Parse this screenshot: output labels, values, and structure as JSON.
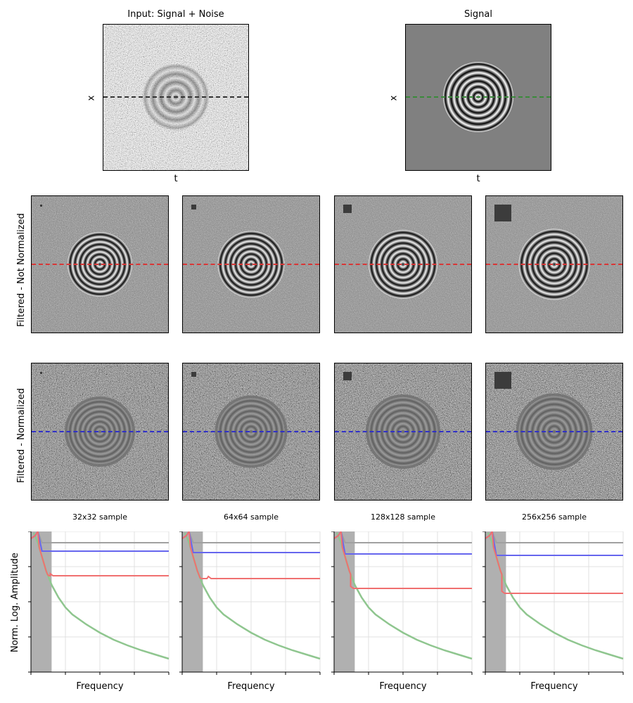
{
  "top": {
    "input_title": "Input: Signal + Noise",
    "signal_title": "Signal",
    "xlabel": "t",
    "ylabel": "x"
  },
  "rows": {
    "not_normalized": "Filtered - Not Normalized",
    "normalized": "Filtered - Normalized"
  },
  "line_colors": {
    "input": "#333333",
    "signal": "#3a8a3a",
    "not_normalized": "#d93636",
    "normalized": "#3030c8"
  },
  "patch_labels": [
    "32x32 sample",
    "64x64 sample",
    "128x128 sample",
    "256x256 sample"
  ],
  "chart_data": {
    "type": "line",
    "panels": [
      "32x32 sample",
      "64x64 sample",
      "128x128 sample",
      "256x256 sample"
    ],
    "xlabel": "Frequency",
    "ylabel": "Norm. Log. Amplitude",
    "xlim": [
      0,
      1
    ],
    "ylim": [
      0,
      1
    ],
    "grid": true,
    "shaded_band": [
      0,
      0.15
    ],
    "colors": {
      "gray": "#a0a0a0",
      "blue": "#6666ee",
      "red": "#f07070",
      "green": "#8fc68f"
    },
    "green_curve": {
      "x": [
        0.02,
        0.05,
        0.08,
        0.11,
        0.15,
        0.2,
        0.25,
        0.3,
        0.4,
        0.5,
        0.6,
        0.7,
        0.8,
        0.9,
        1.0
      ],
      "y": [
        0.99,
        0.92,
        0.82,
        0.72,
        0.62,
        0.53,
        0.46,
        0.41,
        0.34,
        0.28,
        0.23,
        0.19,
        0.155,
        0.125,
        0.095
      ]
    },
    "gray_level": [
      0.92,
      0.92,
      0.92,
      0.92
    ],
    "blue_level": [
      0.86,
      0.85,
      0.84,
      0.83
    ],
    "red_level": [
      0.685,
      0.665,
      0.595,
      0.56
    ],
    "red_knee_x": [
      0.14,
      0.19,
      0.12,
      0.12
    ]
  }
}
